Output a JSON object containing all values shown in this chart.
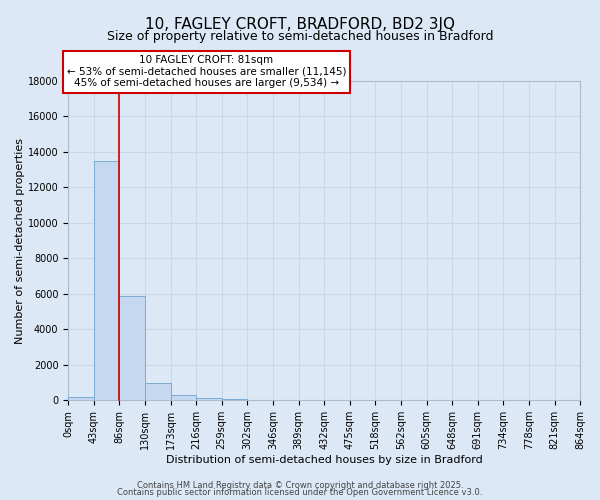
{
  "title": "10, FAGLEY CROFT, BRADFORD, BD2 3JQ",
  "subtitle": "Size of property relative to semi-detached houses in Bradford",
  "xlabel": "Distribution of semi-detached houses by size in Bradford",
  "ylabel": "Number of semi-detached properties",
  "bar_edges": [
    0,
    43,
    86,
    130,
    173,
    216,
    259,
    302,
    346,
    389,
    432,
    475,
    518,
    562,
    605,
    648,
    691,
    734,
    778,
    821,
    864
  ],
  "bar_heights": [
    200,
    13500,
    5900,
    950,
    320,
    130,
    50,
    20,
    10,
    0,
    0,
    0,
    0,
    0,
    0,
    0,
    0,
    0,
    0,
    0
  ],
  "bar_color": "#c5d8f0",
  "bar_edge_color": "#7aaad4",
  "property_line_x": 86,
  "property_line_color": "#cc0000",
  "annotation_title": "10 FAGLEY CROFT: 81sqm",
  "annotation_line1": "← 53% of semi-detached houses are smaller (11,145)",
  "annotation_line2": "45% of semi-detached houses are larger (9,534) →",
  "annotation_box_facecolor": "#ffffff",
  "annotation_box_edgecolor": "#cc0000",
  "ylim": [
    0,
    18000
  ],
  "yticks": [
    0,
    2000,
    4000,
    6000,
    8000,
    10000,
    12000,
    14000,
    16000,
    18000
  ],
  "xtick_labels": [
    "0sqm",
    "43sqm",
    "86sqm",
    "130sqm",
    "173sqm",
    "216sqm",
    "259sqm",
    "302sqm",
    "346sqm",
    "389sqm",
    "432sqm",
    "475sqm",
    "518sqm",
    "562sqm",
    "605sqm",
    "648sqm",
    "691sqm",
    "734sqm",
    "778sqm",
    "821sqm",
    "864sqm"
  ],
  "grid_color": "#c8d8e8",
  "bg_color": "#dce8f5",
  "plot_bg_color": "#dce8f5",
  "footer1": "Contains HM Land Registry data © Crown copyright and database right 2025.",
  "footer2": "Contains public sector information licensed under the Open Government Licence v3.0.",
  "title_fontsize": 11,
  "subtitle_fontsize": 9,
  "ylabel_fontsize": 8,
  "xlabel_fontsize": 8,
  "tick_fontsize": 7,
  "footer_fontsize": 6
}
